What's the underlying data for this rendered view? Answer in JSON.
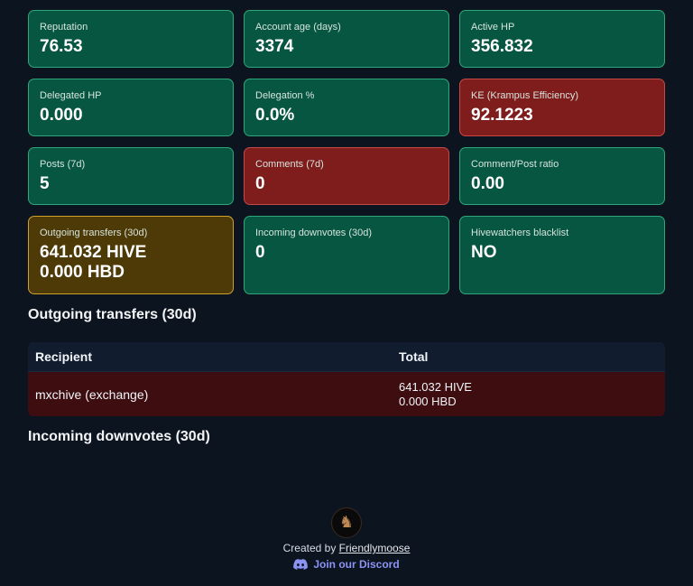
{
  "cards": [
    {
      "label": "Reputation",
      "value": "76.53"
    },
    {
      "label": "Account age (days)",
      "value": "3374"
    },
    {
      "label": "Active HP",
      "value": "356.832"
    },
    {
      "label": "Delegated HP",
      "value": "0.000"
    },
    {
      "label": "Delegation %",
      "value": "0.0%"
    },
    {
      "label": "KE (Krampus Efficiency)",
      "value": "92.1223"
    },
    {
      "label": "Posts (7d)",
      "value": "5"
    },
    {
      "label": "Comments (7d)",
      "value": "0"
    },
    {
      "label": "Comment/Post ratio",
      "value": "0.00"
    },
    {
      "label": "Outgoing transfers (30d)",
      "value": "641.032 HIVE",
      "value2": "0.000 HBD"
    },
    {
      "label": "Incoming downvotes (30d)",
      "value": "0"
    },
    {
      "label": "Hivewatchers blacklist",
      "value": "NO"
    }
  ],
  "colors": {
    "ok_bg": "#075641",
    "bad_bg": "#7f1c1c",
    "warn_bg": "#4e3a07",
    "page_bg": "#0c1420"
  },
  "outgoing": {
    "title": "Outgoing transfers (30d)",
    "columns": [
      "Recipient",
      "Total"
    ],
    "rows": [
      {
        "recipient": "mxchive (exchange)",
        "total_hive": "641.032 HIVE",
        "total_hbd": "0.000 HBD"
      }
    ]
  },
  "incoming": {
    "title": "Incoming downvotes (30d)"
  },
  "footer": {
    "logo": "moose-avatar-icon",
    "created_prefix": "Created by",
    "author": "Friendlymoose",
    "discord_label": "Join our Discord",
    "discord_icon": "discord-icon"
  }
}
